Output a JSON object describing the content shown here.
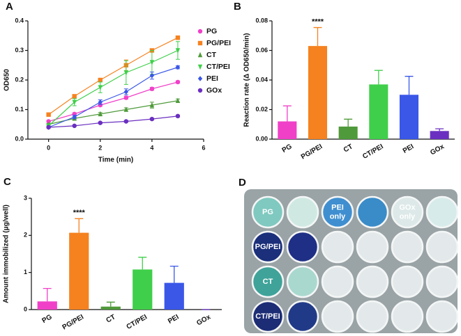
{
  "chart_data": [
    {
      "type": "line",
      "panel": "A",
      "x_label": "Time (min)",
      "y_label": "OD650",
      "x": [
        0,
        1,
        2,
        3,
        4,
        5
      ],
      "xlim": [
        -0.8,
        6
      ],
      "xticks": [
        0,
        2,
        4,
        6
      ],
      "ylim": [
        0,
        0.4
      ],
      "yticks": [
        {
          "value": 0,
          "label": "0.0"
        },
        0.1,
        0.2,
        0.3,
        0.4
      ],
      "series": [
        {
          "name": "PG",
          "color": "#f040c8",
          "marker": "circle",
          "values": [
            0.06,
            0.085,
            0.115,
            0.14,
            0.17,
            0.193
          ],
          "errors": [
            0.003,
            0.004,
            0.004,
            0.005,
            0.005,
            0.004
          ]
        },
        {
          "name": "PG/PEI",
          "color": "#f5821f",
          "marker": "square",
          "values": [
            0.083,
            0.145,
            0.2,
            0.25,
            0.3,
            0.343
          ],
          "errors": [
            0.003,
            0.005,
            0.006,
            0.018,
            0.006,
            0.004
          ]
        },
        {
          "name": "CT",
          "color": "#4f9a3a",
          "marker": "triangle",
          "values": [
            0.05,
            0.07,
            0.085,
            0.1,
            0.115,
            0.13
          ],
          "errors": [
            0.003,
            0.004,
            0.005,
            0.006,
            0.01,
            0.006
          ]
        },
        {
          "name": "CT/PEI",
          "color": "#3fcf4a",
          "marker": "triangle-down",
          "values": [
            0.045,
            0.125,
            0.175,
            0.225,
            0.26,
            0.3
          ],
          "errors": [
            0.006,
            0.012,
            0.018,
            0.04,
            0.04,
            0.03
          ]
        },
        {
          "name": "PEI",
          "color": "#3a57e8",
          "marker": "diamond",
          "values": [
            0.04,
            0.075,
            0.125,
            0.16,
            0.215,
            0.243
          ],
          "errors": [
            0.003,
            0.006,
            0.008,
            0.01,
            0.012,
            0.005
          ]
        },
        {
          "name": "GOx",
          "color": "#6a2fc0",
          "marker": "circle",
          "values": [
            0.04,
            0.045,
            0.055,
            0.06,
            0.068,
            0.078
          ],
          "errors": [
            0.002,
            0.002,
            0.003,
            0.003,
            0.003,
            0.003
          ]
        }
      ]
    },
    {
      "type": "bar",
      "panel": "B",
      "y_label": "Reaction rate (Δ OD650/min)",
      "annotation": "****",
      "categories": [
        "PG",
        "PG/PEI",
        "CT",
        "CT/PEI",
        "PEI",
        "GOx"
      ],
      "values": [
        0.012,
        0.063,
        0.0085,
        0.037,
        0.03,
        0.0055
      ],
      "errors": [
        0.0105,
        0.0125,
        0.005,
        0.0095,
        0.0125,
        0.0015
      ],
      "colors": [
        "#f040c8",
        "#f5821f",
        "#4f9a3a",
        "#3fcf4a",
        "#3a57e8",
        "#6a2fc0"
      ],
      "ylim": [
        0,
        0.08
      ],
      "yticks": [
        {
          "value": 0,
          "label": "0.00"
        },
        0.02,
        0.04,
        0.06,
        0.08
      ]
    },
    {
      "type": "bar",
      "panel": "C",
      "y_label": "Amount immobilized (μg/well)",
      "annotation": "****",
      "categories": [
        "PG",
        "PG/PEI",
        "CT",
        "CT/PEI",
        "PEI",
        "GOx"
      ],
      "values": [
        0.22,
        2.07,
        0.08,
        1.08,
        0.72,
        0
      ],
      "errors": [
        0.35,
        0.38,
        0.12,
        0.33,
        0.45,
        0
      ],
      "colors": [
        "#f040c8",
        "#f5821f",
        "#4f9a3a",
        "#3fcf4a",
        "#3a57e8",
        "#6a2fc0"
      ],
      "ylim": [
        0,
        3
      ],
      "yticks": [
        0,
        1,
        2,
        3
      ]
    }
  ],
  "photo": {
    "panel": "D",
    "labels": [
      [
        "PG"
      ],
      [
        "PEI",
        "only"
      ],
      [
        "GOx",
        "only"
      ],
      [
        "PG/PEI"
      ],
      [
        "CT"
      ],
      [
        "CT/PEI"
      ]
    ]
  }
}
